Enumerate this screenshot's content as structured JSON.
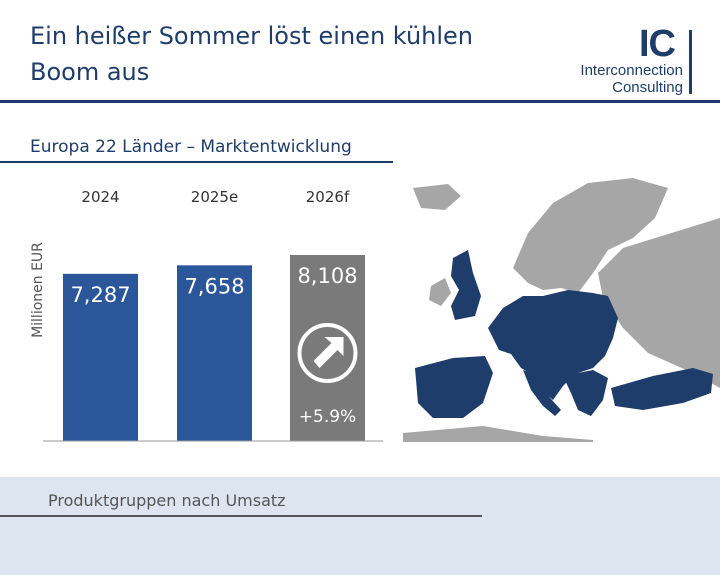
{
  "header": {
    "title_line1": "Ein heißer Sommer löst einen kühlen",
    "title_line2": "Boom aus",
    "logo_mark": "IC",
    "logo_line1": "Interconnection",
    "logo_line2": "Consulting"
  },
  "section": {
    "title": "Europa 22 Länder – Marktentwicklung"
  },
  "chart_data": {
    "type": "bar",
    "categories": [
      "2024",
      "2025e",
      "2026f"
    ],
    "values": [
      7.287,
      7.658,
      8.108
    ],
    "value_labels": [
      "7,287",
      "7,658",
      "8,108"
    ],
    "ylabel": "Millionen EUR",
    "growth_label": "+5.9%",
    "colors": [
      "#2b579a",
      "#2b579a",
      "#7a7a7a"
    ]
  },
  "map": {
    "highlight_color": "#1f3d6b",
    "other_color": "#a6a6a6"
  },
  "bottom": {
    "title": "Produktgruppen nach Umsatz"
  },
  "colors": {
    "brand": "#1f3d6b",
    "bar": "#2b579a",
    "forecast": "#7a7a7a",
    "band": "#dde5f0"
  }
}
